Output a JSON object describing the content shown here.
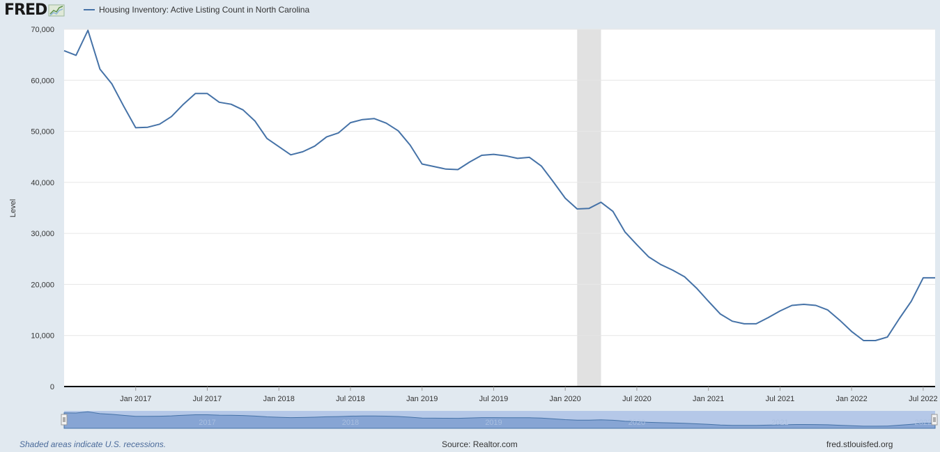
{
  "header": {
    "logo_text": "FRED",
    "legend_label": "Housing Inventory: Active Listing Count in North Carolina",
    "series_color": "#4572a7"
  },
  "footer": {
    "recession_note": "Shaded areas indicate U.S. recessions.",
    "source": "Source: Realtor.com",
    "site": "fred.stlouisfed.org"
  },
  "chart_data": {
    "type": "line",
    "ylabel": "Level",
    "xlabel": "",
    "ylim": [
      0,
      70000
    ],
    "y_ticks": [
      0,
      10000,
      20000,
      30000,
      40000,
      50000,
      60000,
      70000
    ],
    "y_tick_labels": [
      "0",
      "10,000",
      "20,000",
      "30,000",
      "40,000",
      "50,000",
      "60,000",
      "70,000"
    ],
    "x_range": [
      "2016-07",
      "2022-08"
    ],
    "x_ticks": [
      "2017-01",
      "2017-07",
      "2018-01",
      "2018-07",
      "2019-01",
      "2019-07",
      "2020-01",
      "2020-07",
      "2021-01",
      "2021-07",
      "2022-01",
      "2022-07"
    ],
    "x_tick_labels": [
      "Jan 2017",
      "Jul 2017",
      "Jan 2018",
      "Jul 2018",
      "Jan 2019",
      "Jul 2019",
      "Jan 2020",
      "Jul 2020",
      "Jan 2021",
      "Jul 2021",
      "Jan 2022",
      "Jul 2022"
    ],
    "recessions": [
      {
        "start": "2020-02",
        "end": "2020-04"
      }
    ],
    "grid": true,
    "legend": "top-left",
    "navigator_labels": [
      "2017",
      "2018",
      "2019",
      "2020",
      "2021",
      "2022"
    ],
    "series": [
      {
        "name": "Housing Inventory: Active Listing Count in North Carolina",
        "color": "#4572a7",
        "x": [
          "2016-07",
          "2016-08",
          "2016-09",
          "2016-10",
          "2016-11",
          "2016-12",
          "2017-01",
          "2017-02",
          "2017-03",
          "2017-04",
          "2017-05",
          "2017-06",
          "2017-07",
          "2017-08",
          "2017-09",
          "2017-10",
          "2017-11",
          "2017-12",
          "2018-01",
          "2018-02",
          "2018-03",
          "2018-04",
          "2018-05",
          "2018-06",
          "2018-07",
          "2018-08",
          "2018-09",
          "2018-10",
          "2018-11",
          "2018-12",
          "2019-01",
          "2019-02",
          "2019-03",
          "2019-04",
          "2019-05",
          "2019-06",
          "2019-07",
          "2019-08",
          "2019-09",
          "2019-10",
          "2019-11",
          "2019-12",
          "2020-01",
          "2020-02",
          "2020-03",
          "2020-04",
          "2020-05",
          "2020-06",
          "2020-07",
          "2020-08",
          "2020-09",
          "2020-10",
          "2020-11",
          "2020-12",
          "2021-01",
          "2021-02",
          "2021-03",
          "2021-04",
          "2021-05",
          "2021-06",
          "2021-07",
          "2021-08",
          "2021-09",
          "2021-10",
          "2021-11",
          "2021-12",
          "2022-01",
          "2022-02",
          "2022-03",
          "2022-04",
          "2022-05",
          "2022-06",
          "2022-07",
          "2022-08"
        ],
        "values": [
          65800,
          64900,
          69800,
          62200,
          59300,
          54900,
          50700,
          50800,
          51400,
          52900,
          55300,
          57400,
          57400,
          55700,
          55300,
          54200,
          52000,
          48600,
          47000,
          45400,
          46000,
          47100,
          48900,
          49700,
          51700,
          52300,
          52500,
          51600,
          50100,
          47300,
          43600,
          43100,
          42600,
          42500,
          44000,
          45300,
          45500,
          45200,
          44700,
          44900,
          43200,
          40100,
          36900,
          34800,
          34900,
          36100,
          34300,
          30300,
          27800,
          25400,
          23900,
          22800,
          21500,
          19300,
          16700,
          14200,
          12800,
          12300,
          12300,
          13500,
          14800,
          15900,
          16100,
          15900,
          15000,
          13000,
          10800,
          9000,
          9000,
          9700,
          13300,
          16700,
          21300,
          21300
        ]
      }
    ]
  }
}
